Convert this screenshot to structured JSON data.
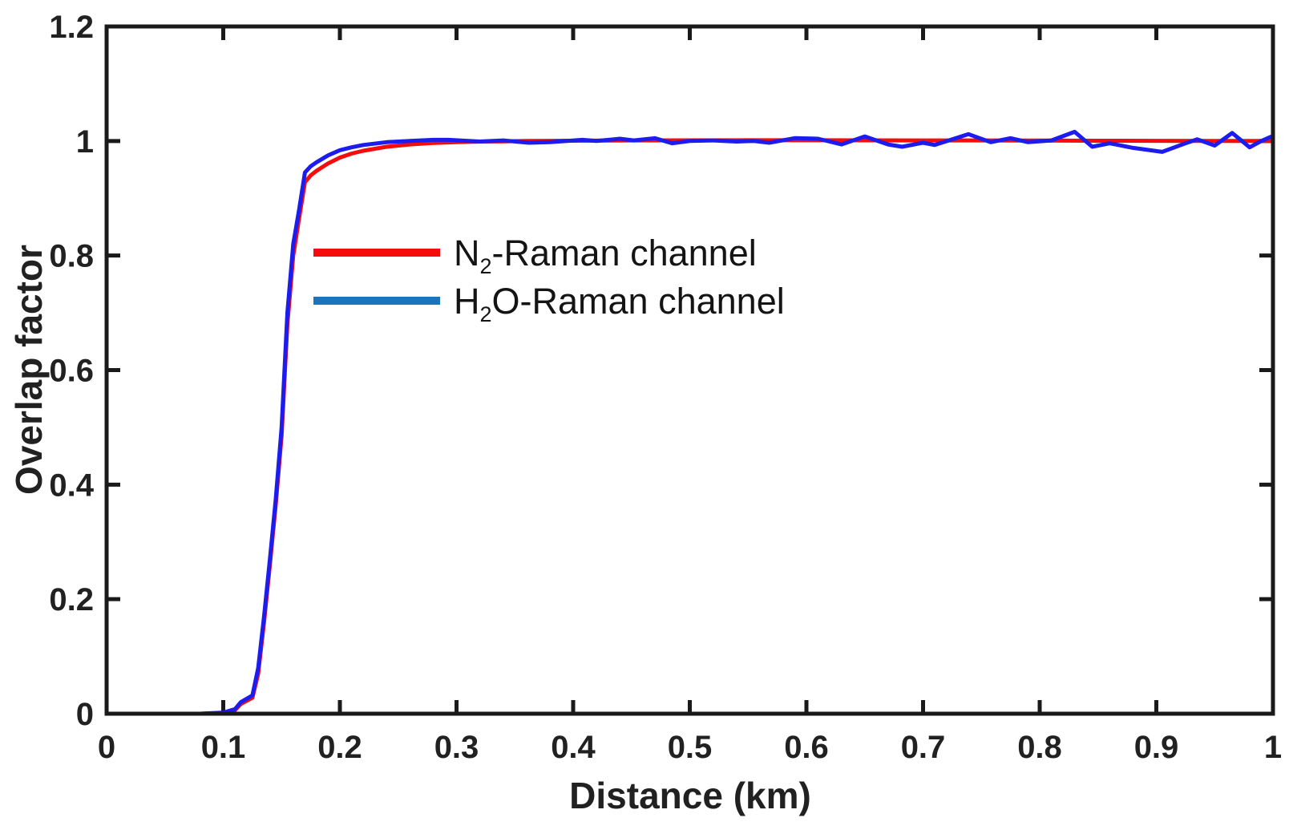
{
  "figure": {
    "background_color": "#ffffff",
    "axis_color": "#1a1a1a",
    "tick_label_color": "#212121",
    "axis_label_color": "#212121"
  },
  "chart_data": {
    "type": "line",
    "title": "",
    "xlabel": "Distance (km)",
    "ylabel": "Overlap factor",
    "xlim": [
      0,
      1
    ],
    "ylim": [
      0,
      1.2
    ],
    "grid": false,
    "box": true,
    "tick_direction": "in",
    "legend_position": "inside upper-left area",
    "xticks": {
      "values": [
        0,
        0.1,
        0.2,
        0.3,
        0.4,
        0.5,
        0.6,
        0.7,
        0.8,
        0.9,
        1
      ],
      "labels": [
        "0",
        "0.1",
        "0.2",
        "0.3",
        "0.4",
        "0.5",
        "0.6",
        "0.7",
        "0.8",
        "0.9",
        "1"
      ]
    },
    "yticks": {
      "values": [
        0,
        0.2,
        0.4,
        0.6,
        0.8,
        1.0,
        1.2
      ],
      "labels": [
        "0",
        "0.2",
        "0.4",
        "0.6",
        "0.8",
        "1",
        "1.2"
      ]
    },
    "series": [
      {
        "name": "N2-Raman channel",
        "legend": {
          "prefix": "N",
          "sub": "2",
          "suffix": "-Raman channel"
        },
        "color": "#f50d0d",
        "legend_swatch_color": "#f50d0d",
        "line_width": 5,
        "x": [
          0,
          0.04,
          0.08,
          0.1,
          0.11,
          0.115,
          0.125,
          0.13,
          0.135,
          0.14,
          0.145,
          0.15,
          0.155,
          0.16,
          0.165,
          0.17,
          0.175,
          0.18,
          0.19,
          0.2,
          0.21,
          0.22,
          0.24,
          0.26,
          0.28,
          0.3,
          0.32,
          0.34,
          0.36,
          0.4,
          0.45,
          0.5,
          0.55,
          0.6,
          0.65,
          0.7,
          0.75,
          0.8,
          0.85,
          0.9,
          0.95,
          1.0
        ],
        "y": [
          0,
          0,
          0,
          0.001,
          0.006,
          0.017,
          0.028,
          0.07,
          0.16,
          0.26,
          0.365,
          0.485,
          0.68,
          0.8,
          0.865,
          0.928,
          0.94,
          0.948,
          0.961,
          0.971,
          0.978,
          0.983,
          0.99,
          0.994,
          0.9965,
          0.998,
          0.999,
          0.9995,
          1.0,
          1.0005,
          1.001,
          1.0012,
          1.0013,
          1.0013,
          1.0012,
          1.001,
          1.001,
          1.0008,
          1.0005,
          1.0003,
          1.0,
          1.0
        ]
      },
      {
        "name": "H2O-Raman channel",
        "legend": {
          "prefix": "H",
          "sub": "2",
          "suffix": "O-Raman channel"
        },
        "color": "#1c1cef",
        "legend_swatch_color": "#1c75bc",
        "line_width": 5,
        "x": [
          0,
          0.02,
          0.04,
          0.06,
          0.08,
          0.1,
          0.11,
          0.115,
          0.125,
          0.13,
          0.135,
          0.14,
          0.145,
          0.15,
          0.155,
          0.16,
          0.165,
          0.17,
          0.175,
          0.18,
          0.19,
          0.2,
          0.21,
          0.22,
          0.24,
          0.26,
          0.28,
          0.293,
          0.32,
          0.34,
          0.362,
          0.38,
          0.408,
          0.42,
          0.44,
          0.452,
          0.47,
          0.485,
          0.5,
          0.52,
          0.54,
          0.555,
          0.568,
          0.59,
          0.61,
          0.63,
          0.65,
          0.67,
          0.682,
          0.7,
          0.71,
          0.739,
          0.758,
          0.775,
          0.79,
          0.81,
          0.83,
          0.845,
          0.86,
          0.88,
          0.905,
          0.925,
          0.935,
          0.95,
          0.965,
          0.98,
          0.99,
          1.0
        ],
        "y": [
          0,
          0,
          0,
          0,
          0,
          0.002,
          0.008,
          0.02,
          0.032,
          0.08,
          0.17,
          0.27,
          0.375,
          0.5,
          0.7,
          0.82,
          0.88,
          0.945,
          0.956,
          0.963,
          0.975,
          0.984,
          0.989,
          0.993,
          0.998,
          1.0,
          1.002,
          1.002,
          0.999,
          1.001,
          0.997,
          0.998,
          1.002,
          1.0,
          1.004,
          1.001,
          1.005,
          0.996,
          1.0,
          1.001,
          0.999,
          1.0,
          0.997,
          1.005,
          1.004,
          0.994,
          1.008,
          0.994,
          0.99,
          0.997,
          0.993,
          1.012,
          0.998,
          1.005,
          0.998,
          1.001,
          1.016,
          0.99,
          0.996,
          0.988,
          0.981,
          0.996,
          1.003,
          0.992,
          1.014,
          0.989,
          1.0,
          1.009
        ]
      }
    ]
  }
}
